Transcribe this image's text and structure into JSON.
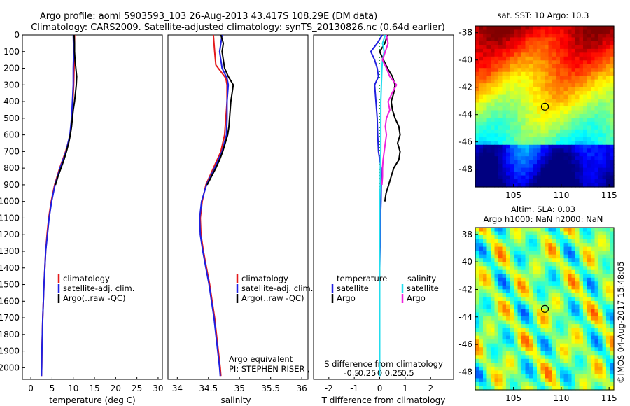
{
  "header": {
    "title_line1": "Argo profile: aoml 5903593_103 26-Aug-2013 43.417S 108.29E (DM data)",
    "title_line2": "Climatology: CARS2009. Satellite-adjusted climatology: synTS_20130826.nc (0.64d earlier)"
  },
  "maps": {
    "sst_title": "sat. SST: 10 Argo: 10.3",
    "sla_title_line1": "Altim. SLA: 0.03",
    "sla_title_line2": "Argo h1000: NaN h2000: NaN",
    "lat_ticks": [
      "-38",
      "-40",
      "-42",
      "-44",
      "-46",
      "-48"
    ],
    "lon_ticks": [
      "105",
      "110",
      "115"
    ],
    "argo_lon": 108.29,
    "argo_lat": -43.417,
    "lon_range": [
      101,
      115.5
    ],
    "lat_range": [
      -49.3,
      -37.5
    ]
  },
  "credits": {
    "imos": "©IMOS 04-Aug-2017 15:48:05",
    "argo_equivalent": "Argo equivalent",
    "pi": "PI: STEPHEN RISER , KENNETH JOHNSON"
  },
  "chart_data": [
    {
      "type": "line",
      "panel": "temperature",
      "xlabel": "temperature (deg C)",
      "ylabel": "",
      "xlim": [
        -2,
        31
      ],
      "ylim": [
        2070,
        0
      ],
      "xticks": [
        "0",
        "5",
        "10",
        "15",
        "20",
        "25",
        "30"
      ],
      "yticks": [
        "0",
        "100",
        "200",
        "300",
        "400",
        "500",
        "600",
        "700",
        "800",
        "900",
        "1000",
        "1100",
        "1200",
        "1300",
        "1400",
        "1500",
        "1600",
        "1700",
        "1800",
        "1900",
        "2000"
      ],
      "legend": [
        "climatology",
        "satellite-adj. clim.",
        "Argo(..raw -QC)"
      ],
      "series": [
        {
          "name": "climatology",
          "color": "#e41a1c",
          "depth": [
            0,
            100,
            200,
            300,
            400,
            500,
            600,
            700,
            800,
            900,
            1000,
            1100,
            1200,
            1300,
            1400,
            1500,
            1600,
            1700,
            1800,
            1900,
            2000,
            2050
          ],
          "values": [
            10.3,
            10.3,
            10.2,
            10.1,
            9.9,
            9.7,
            9.3,
            8.2,
            6.8,
            5.6,
            4.8,
            4.2,
            3.8,
            3.5,
            3.3,
            3.1,
            2.95,
            2.8,
            2.7,
            2.6,
            2.55,
            2.5
          ]
        },
        {
          "name": "satellite-adj. clim.",
          "color": "#1f1fe0",
          "depth": [
            0,
            100,
            200,
            300,
            400,
            500,
            600,
            700,
            800,
            900,
            1000,
            1100,
            1200,
            1300,
            1400,
            1500,
            1600,
            1700,
            1800,
            1900,
            2000,
            2050
          ],
          "values": [
            10.0,
            10.1,
            10.0,
            10.0,
            9.8,
            9.6,
            9.2,
            8.3,
            6.9,
            5.7,
            4.9,
            4.3,
            3.9,
            3.5,
            3.3,
            3.1,
            2.95,
            2.8,
            2.7,
            2.6,
            2.55,
            2.5
          ]
        },
        {
          "name": "Argo(..raw -QC)",
          "color": "#000000",
          "depth": [
            0,
            50,
            100,
            150,
            200,
            250,
            300,
            350,
            400,
            450,
            500,
            550,
            600,
            650,
            700,
            750,
            800,
            850,
            900
          ],
          "values": [
            10.2,
            10.3,
            10.3,
            10.4,
            10.6,
            10.8,
            10.7,
            10.5,
            10.3,
            10.0,
            9.8,
            9.6,
            9.3,
            8.9,
            8.4,
            7.8,
            7.1,
            6.4,
            5.8
          ]
        }
      ]
    },
    {
      "type": "line",
      "panel": "salinity",
      "xlabel": "salinity",
      "ylabel": "",
      "xlim": [
        33.85,
        36.1
      ],
      "ylim": [
        2070,
        0
      ],
      "xticks": [
        "34",
        "34.5",
        "35",
        "35.5",
        "36"
      ],
      "legend": [
        "climatology",
        "satellite-adj. clim.",
        "Argo(..raw -QC)"
      ],
      "series": [
        {
          "name": "climatology",
          "color": "#e41a1c",
          "depth": [
            0,
            100,
            180,
            260,
            300,
            400,
            500,
            600,
            700,
            800,
            900,
            1000,
            1100,
            1200,
            1300,
            1400,
            1500,
            1600,
            1700,
            1800,
            1900,
            2000,
            2050
          ],
          "values": [
            34.58,
            34.6,
            34.62,
            34.78,
            34.8,
            34.8,
            34.78,
            34.76,
            34.7,
            34.58,
            34.46,
            34.4,
            34.37,
            34.38,
            34.42,
            34.47,
            34.52,
            34.56,
            34.6,
            34.63,
            34.66,
            34.69,
            34.7
          ]
        },
        {
          "name": "satellite-adj. clim.",
          "color": "#1f1fe0",
          "depth": [
            0,
            50,
            100,
            200,
            260,
            300,
            400,
            500,
            600,
            700,
            800,
            900,
            1000,
            1100,
            1200,
            1300,
            1400,
            1500,
            1600,
            1700,
            1800,
            1900,
            2000,
            2050
          ],
          "values": [
            34.72,
            34.7,
            34.68,
            34.72,
            34.8,
            34.82,
            34.8,
            34.8,
            34.79,
            34.72,
            34.6,
            34.47,
            34.39,
            34.36,
            34.37,
            34.41,
            34.46,
            34.51,
            34.55,
            34.59,
            34.62,
            34.65,
            34.68,
            34.69
          ]
        },
        {
          "name": "Argo(..raw -QC)",
          "color": "#000000",
          "depth": [
            0,
            50,
            100,
            150,
            200,
            250,
            300,
            350,
            400,
            450,
            500,
            550,
            600,
            650,
            700,
            750,
            800,
            850,
            900
          ],
          "values": [
            34.7,
            34.74,
            34.72,
            34.74,
            34.76,
            34.82,
            34.9,
            34.88,
            34.86,
            34.85,
            34.84,
            34.83,
            34.81,
            34.77,
            34.73,
            34.68,
            34.62,
            34.55,
            34.48
          ]
        }
      ]
    },
    {
      "type": "line",
      "panel": "differences",
      "xlabel": "T difference from climatology",
      "xlabel_top": "S difference from climatology",
      "xlim": [
        -2.6,
        2.9
      ],
      "ylim": [
        2070,
        0
      ],
      "xticks": [
        "-2",
        "-1",
        "0",
        "1",
        "2"
      ],
      "sxticks": [
        "-0.5",
        "-0.25",
        "0",
        "0.25",
        "0.5"
      ],
      "legend_temperature": {
        "title": "temperature",
        "items": [
          "satellite",
          "Argo"
        ]
      },
      "legend_salinity": {
        "title": "salinity",
        "items": [
          "satellite",
          "Argo"
        ]
      },
      "series": [
        {
          "name": "T satellite",
          "color": "#1f1fe0",
          "depth": [
            0,
            50,
            100,
            150,
            200,
            250,
            300,
            400,
            500,
            600,
            700,
            800,
            900,
            1000,
            1100,
            1200,
            1300,
            1400,
            1500,
            1600,
            1700,
            1800,
            1900,
            2000,
            2050
          ],
          "values": [
            0.1,
            -0.1,
            -0.35,
            -0.2,
            -0.1,
            -0.05,
            -0.2,
            -0.15,
            -0.1,
            -0.08,
            -0.05,
            0.05,
            0.06,
            0.05,
            0.03,
            0.02,
            0.01,
            0.0,
            0.0,
            0.0,
            0.0,
            0.0,
            0.0,
            0.0,
            0.0
          ]
        },
        {
          "name": "T Argo",
          "color": "#000000",
          "depth": [
            0,
            50,
            100,
            150,
            200,
            250,
            300,
            350,
            400,
            450,
            500,
            550,
            600,
            650,
            700,
            750,
            800,
            850,
            900,
            950,
            1000
          ],
          "values": [
            0.3,
            0.2,
            0.0,
            0.15,
            0.3,
            0.5,
            0.6,
            0.55,
            0.45,
            0.5,
            0.6,
            0.75,
            0.8,
            0.7,
            0.8,
            0.75,
            0.55,
            0.45,
            0.35,
            0.25,
            0.2
          ]
        },
        {
          "name": "S satellite",
          "color": "#22ddee",
          "depth": [
            0,
            50,
            100,
            150,
            200,
            300,
            400,
            500,
            600,
            700,
            800,
            900,
            1000,
            1100,
            1200,
            1300,
            1400,
            1500,
            1600,
            1700,
            1800,
            1900,
            2000,
            2050
          ],
          "values": [
            0.1,
            0.05,
            0.08,
            0.05,
            0.04,
            0.03,
            0.02,
            0.02,
            0.02,
            0.02,
            0.01,
            0.01,
            0.0,
            0.0,
            0.0,
            0.0,
            0.0,
            0.0,
            0.0,
            0.0,
            0.0,
            0.0,
            0.0,
            0.0
          ]
        },
        {
          "name": "S Argo",
          "color": "#ee22dd",
          "depth": [
            0,
            50,
            100,
            150,
            200,
            250,
            300,
            350,
            400,
            450,
            500,
            550,
            600,
            650,
            700,
            750,
            800,
            850,
            900
          ],
          "values": [
            0.12,
            0.15,
            0.1,
            0.05,
            0.12,
            0.18,
            0.3,
            0.22,
            0.15,
            0.18,
            0.12,
            0.1,
            0.12,
            0.1,
            0.08,
            0.06,
            0.05,
            0.05,
            0.04
          ]
        }
      ]
    }
  ]
}
